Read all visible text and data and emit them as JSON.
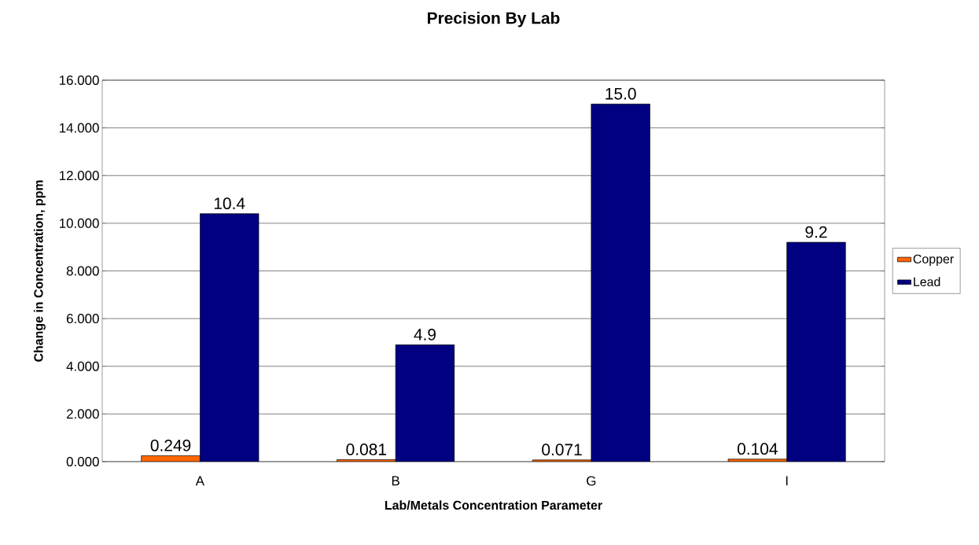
{
  "chart_data": {
    "type": "bar",
    "title": "Precision By Lab",
    "xlabel": "Lab/Metals Concentration Parameter",
    "ylabel": "Change in Concentration, ppm",
    "categories": [
      "A",
      "B",
      "G",
      "I"
    ],
    "series": [
      {
        "name": "Copper",
        "color": "#ff6600",
        "values": [
          0.249,
          0.081,
          0.071,
          0.104
        ],
        "value_labels": [
          "0.249",
          "0.081",
          "0.071",
          "0.104"
        ]
      },
      {
        "name": "Lead",
        "color": "#000080",
        "values": [
          10.4,
          4.9,
          15.0,
          9.2
        ],
        "value_labels": [
          "10.4",
          "4.9",
          "15.0",
          "9.2"
        ]
      }
    ],
    "ylim": [
      0,
      16
    ],
    "yticks": [
      {
        "value": 0,
        "label": "0.000"
      },
      {
        "value": 2,
        "label": "2.000"
      },
      {
        "value": 4,
        "label": "4.000"
      },
      {
        "value": 6,
        "label": "6.000"
      },
      {
        "value": 8,
        "label": "8.000"
      },
      {
        "value": 10,
        "label": "10.000"
      },
      {
        "value": 12,
        "label": "12.000"
      },
      {
        "value": 14,
        "label": "14.000"
      },
      {
        "value": 16,
        "label": "16.000"
      }
    ],
    "grid": "y",
    "legend": "right"
  }
}
